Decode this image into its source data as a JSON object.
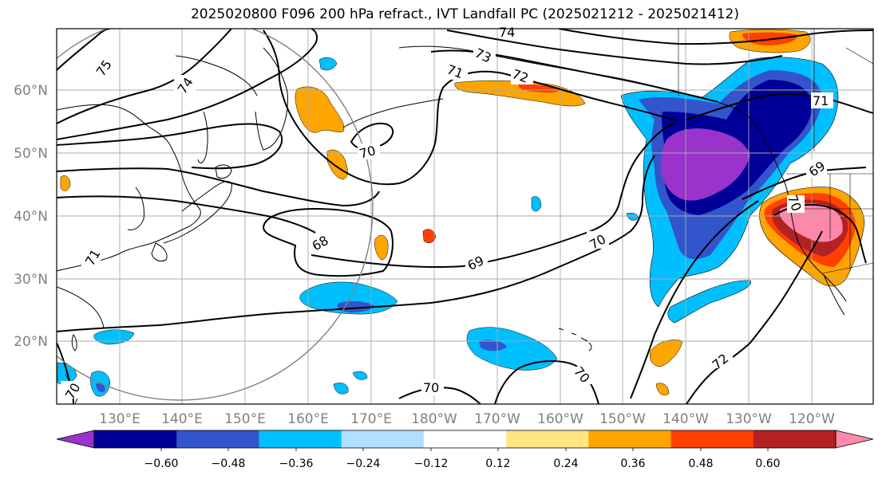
{
  "title": "2025020800 F096 200 hPa refract., IVT Landfall PC (2025021212 - 2025021412)",
  "latitude_labels": [
    "60°N",
    "50°N",
    "40°N",
    "30°N",
    "20°N"
  ],
  "longitude_labels": [
    "130°E",
    "140°E",
    "150°E",
    "160°E",
    "170°E",
    "180°W",
    "170°W",
    "160°W",
    "150°W",
    "140°W",
    "130°W",
    "120°W"
  ],
  "contour_labels": [
    "75",
    "74",
    "74",
    "73",
    "71",
    "72",
    "71",
    "70",
    "69",
    "70",
    "68",
    "69",
    "70",
    "70",
    "72",
    "70",
    "71",
    "70"
  ],
  "colorbar": {
    "tick_labels": [
      "−0.60",
      "−0.48",
      "−0.36",
      "−0.24",
      "−0.12",
      "0.12",
      "0.24",
      "0.36",
      "0.48",
      "0.60"
    ],
    "colors": [
      "#9933cc",
      "#000099",
      "#3355cc",
      "#00bfff",
      "#b0e0ff",
      "#ffffff",
      "#ffe680",
      "#ffa500",
      "#ff4000",
      "#b22222",
      "#ff88aa"
    ]
  }
}
